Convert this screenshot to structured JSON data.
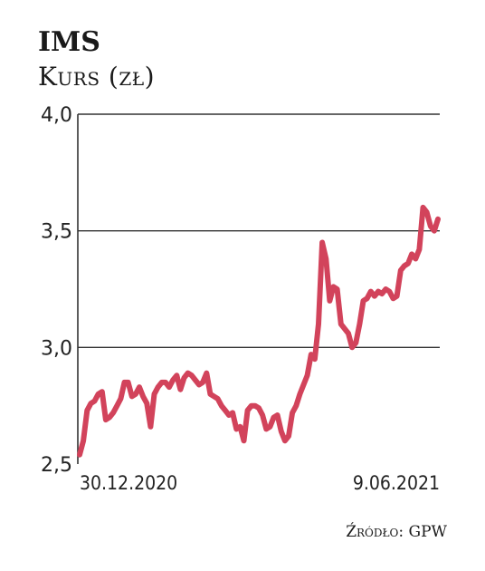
{
  "chart_data": {
    "type": "line",
    "title": "IMS",
    "subtitle": "Kurs (zł)",
    "source": "Źródło: GPW",
    "ylim": [
      2.5,
      4.0
    ],
    "yticks": [
      "4,0",
      "3,5",
      "3,0",
      "2,5"
    ],
    "ytick_values": [
      4.0,
      3.5,
      3.0,
      2.5
    ],
    "xtick_labels": [
      "30.12.2020",
      "9.06.2021"
    ],
    "grid": "horizontal",
    "line_color": "#d2435b",
    "series": [
      {
        "values": [
          2.54,
          2.6,
          2.73,
          2.76,
          2.77,
          2.8,
          2.81,
          2.69,
          2.7,
          2.72,
          2.75,
          2.78,
          2.85,
          2.85,
          2.79,
          2.8,
          2.83,
          2.79,
          2.76,
          2.66,
          2.8,
          2.83,
          2.85,
          2.85,
          2.83,
          2.86,
          2.88,
          2.82,
          2.87,
          2.89,
          2.88,
          2.86,
          2.84,
          2.85,
          2.89,
          2.8,
          2.79,
          2.78,
          2.75,
          2.73,
          2.71,
          2.72,
          2.65,
          2.66,
          2.6,
          2.73,
          2.75,
          2.75,
          2.74,
          2.71,
          2.65,
          2.66,
          2.7,
          2.71,
          2.64,
          2.6,
          2.62,
          2.72,
          2.75,
          2.8,
          2.84,
          2.88,
          2.97,
          2.95,
          3.1,
          3.45,
          3.38,
          3.2,
          3.26,
          3.25,
          3.1,
          3.08,
          3.06,
          3.0,
          3.02,
          3.1,
          3.2,
          3.21,
          3.24,
          3.22,
          3.24,
          3.23,
          3.25,
          3.24,
          3.21,
          3.22,
          3.33,
          3.35,
          3.36,
          3.4,
          3.38,
          3.42,
          3.6,
          3.58,
          3.52,
          3.5,
          3.55
        ]
      }
    ]
  }
}
